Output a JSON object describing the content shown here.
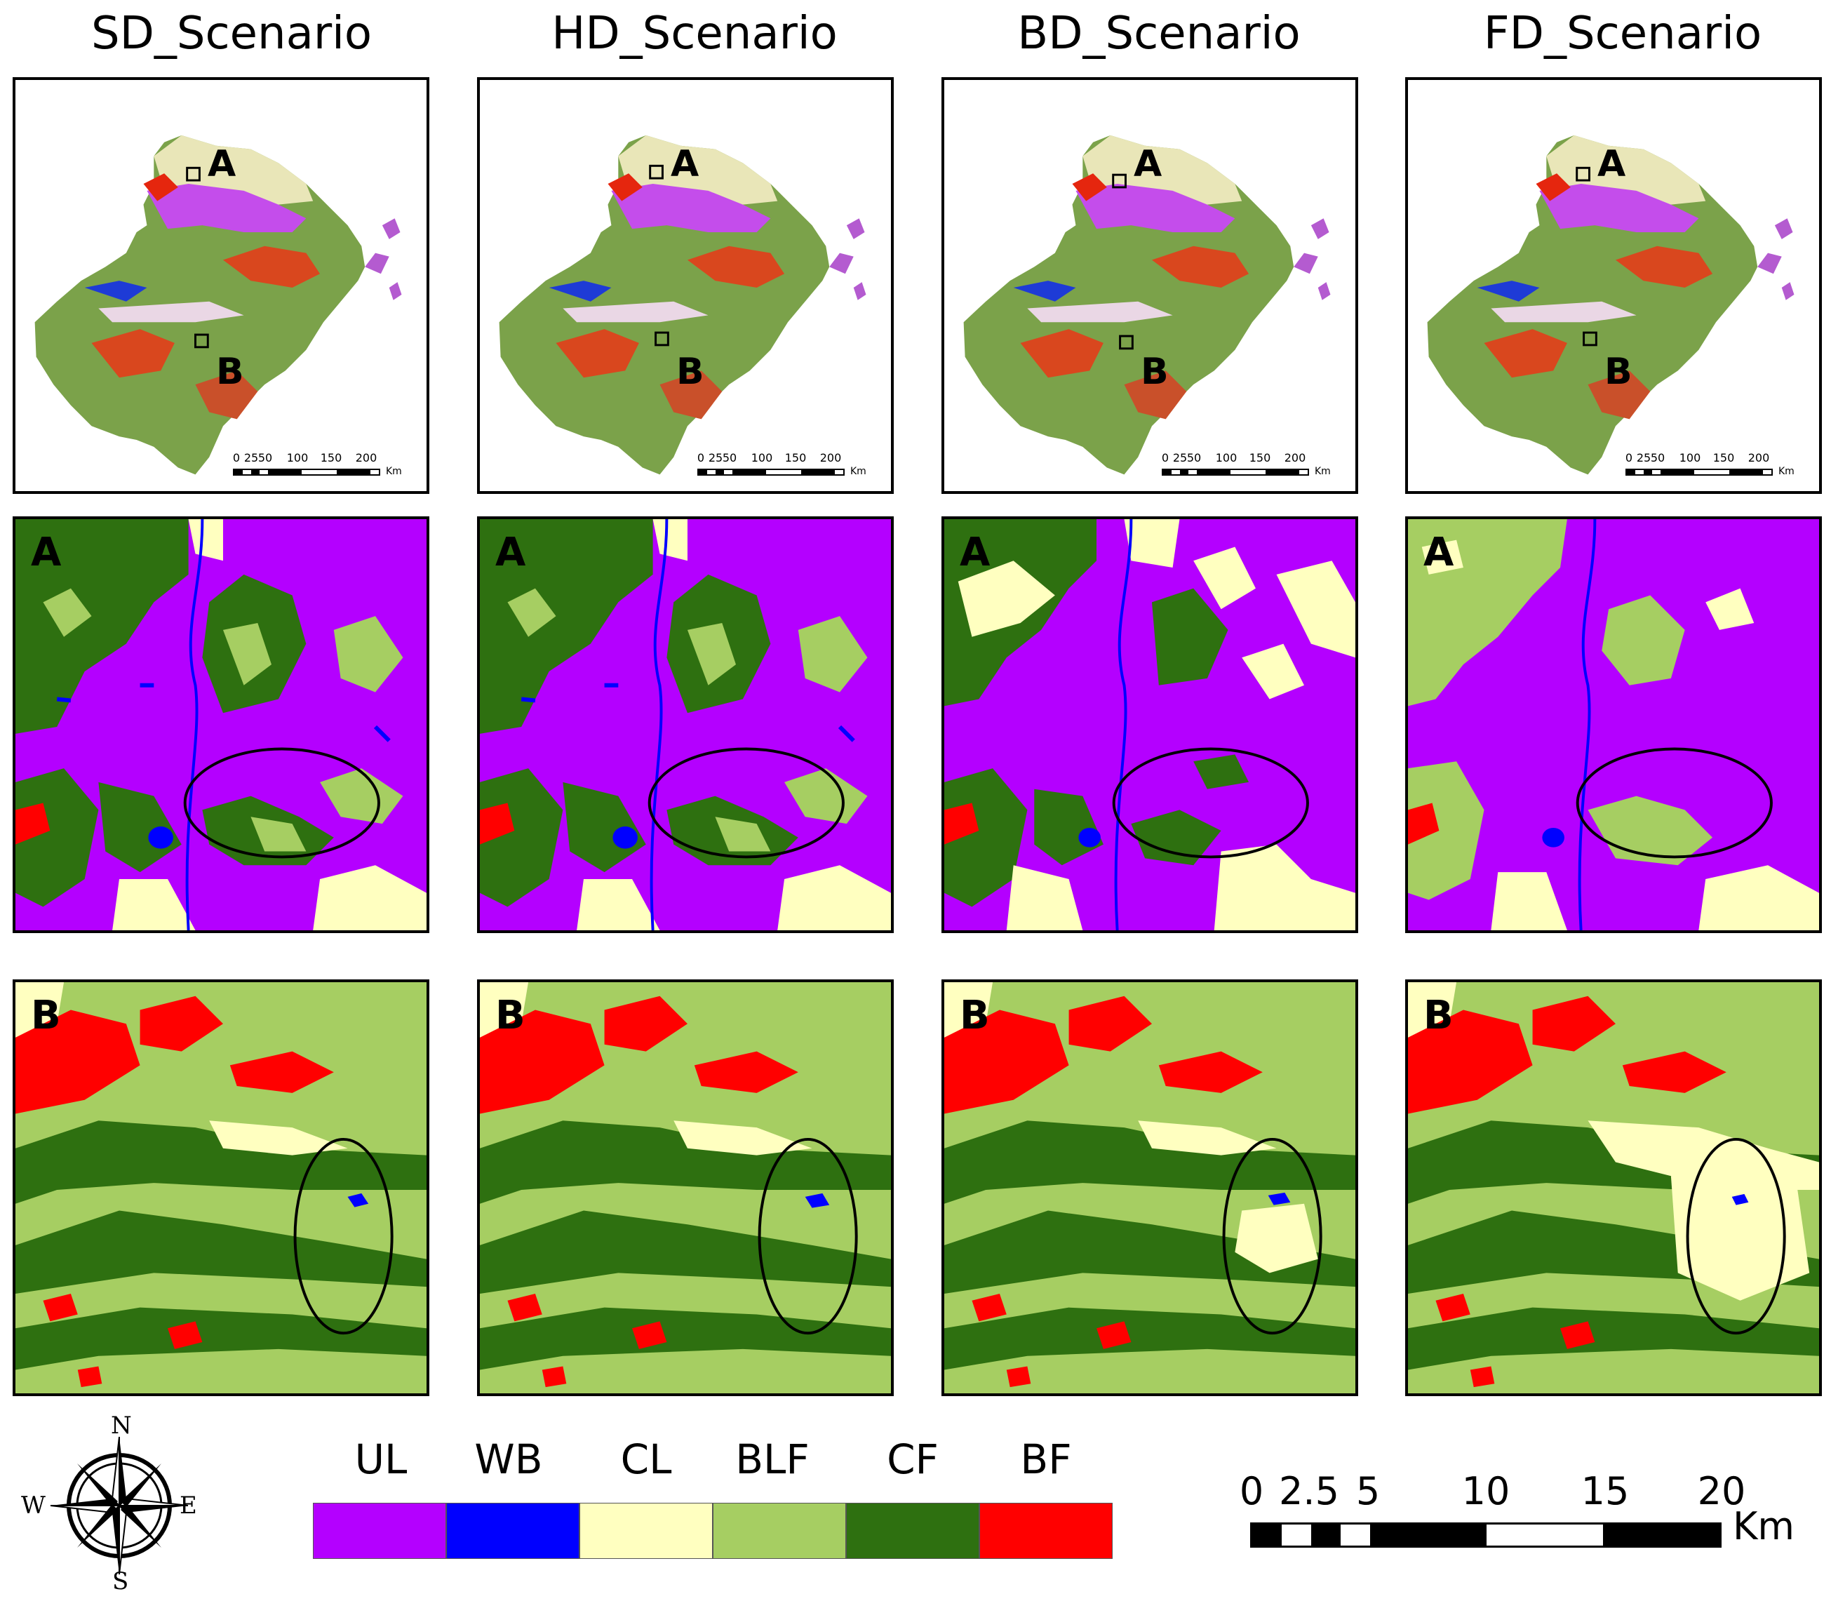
{
  "scenarios": [
    {
      "title": "SD_Scenario"
    },
    {
      "title": "HD_Scenario"
    },
    {
      "title": "BD_Scenario"
    },
    {
      "title": "FD_Scenario"
    }
  ],
  "overview": {
    "marker_a": "A",
    "marker_b": "B",
    "scale_ticks": [
      "0",
      "25",
      "50",
      "100",
      "150",
      "200"
    ],
    "scale_unit": "Km"
  },
  "zoom_a_label": "A",
  "zoom_b_label": "B",
  "compass": {
    "n": "N",
    "s": "S",
    "e": "E",
    "w": "W"
  },
  "legend": [
    {
      "code": "UL",
      "color": "#B400FF"
    },
    {
      "code": "WB",
      "color": "#0000FF"
    },
    {
      "code": "CL",
      "color": "#FFFFC0"
    },
    {
      "code": "BLF",
      "color": "#A6CE62"
    },
    {
      "code": "CF",
      "color": "#2E7010"
    },
    {
      "code": "BF",
      "color": "#FF0000"
    }
  ],
  "scalebar": {
    "ticks": [
      "0",
      "2.5",
      "5",
      "10",
      "15",
      "20"
    ],
    "unit": "Km"
  }
}
